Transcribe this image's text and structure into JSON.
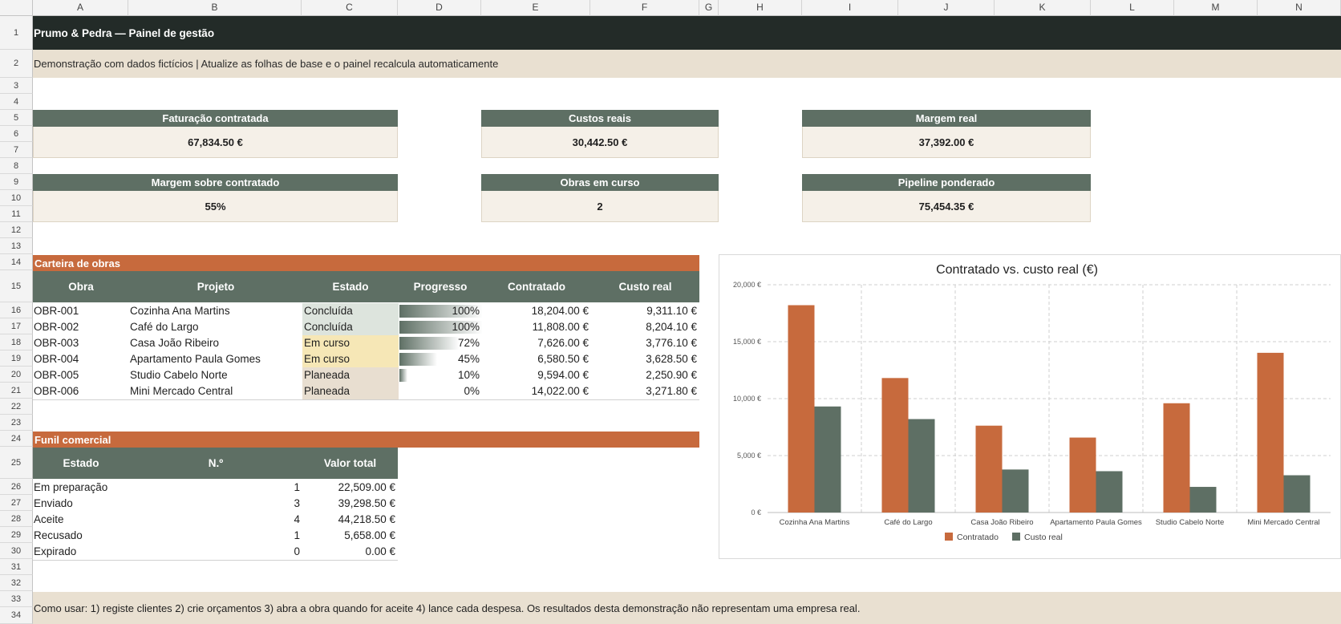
{
  "columns": [
    "A",
    "B",
    "C",
    "D",
    "E",
    "F",
    "G",
    "H",
    "I",
    "J",
    "K",
    "L",
    "M",
    "N"
  ],
  "rows": [
    "1",
    "2",
    "3",
    "4",
    "5",
    "6",
    "7",
    "8",
    "9",
    "10",
    "11",
    "12",
    "13",
    "14",
    "15",
    "16",
    "17",
    "18",
    "19",
    "20",
    "21",
    "22",
    "23",
    "24",
    "25",
    "26",
    "27",
    "28",
    "29",
    "30",
    "31",
    "32",
    "33",
    "34"
  ],
  "title": "Prumo & Pedra — Painel de gestão",
  "subtitle": "Demonstração com dados fictícios | Atualize as folhas de base e o painel recalcula automaticamente",
  "kpis": [
    {
      "label": "Faturação contratada",
      "value": "67,834.50 €"
    },
    {
      "label": "Custos reais",
      "value": "30,442.50 €"
    },
    {
      "label": "Margem real",
      "value": "37,392.00 €"
    },
    {
      "label": "Margem sobre contratado",
      "value": "55%"
    },
    {
      "label": "Obras em curso",
      "value": "2"
    },
    {
      "label": "Pipeline ponderado",
      "value": "75,454.35 €"
    }
  ],
  "portfolio": {
    "section": "Carteira de obras",
    "headers": [
      "Obra",
      "Projeto",
      "Estado",
      "Progresso",
      "Contratado",
      "Custo real"
    ],
    "rows": [
      {
        "id": "OBR-001",
        "project": "Cozinha Ana Martins",
        "status": "Concluída",
        "status_kind": "done",
        "progress": 1.0,
        "progress_label": "100%",
        "contracted": "18,204.00 €",
        "cost": "9,311.10 €"
      },
      {
        "id": "OBR-002",
        "project": "Café do Largo",
        "status": "Concluída",
        "status_kind": "done",
        "progress": 1.0,
        "progress_label": "100%",
        "contracted": "11,808.00 €",
        "cost": "8,204.10 €"
      },
      {
        "id": "OBR-003",
        "project": "Casa João Ribeiro",
        "status": "Em curso",
        "status_kind": "run",
        "progress": 0.72,
        "progress_label": "72%",
        "contracted": "7,626.00 €",
        "cost": "3,776.10 €"
      },
      {
        "id": "OBR-004",
        "project": "Apartamento Paula Gomes",
        "status": "Em curso",
        "status_kind": "run",
        "progress": 0.45,
        "progress_label": "45%",
        "contracted": "6,580.50 €",
        "cost": "3,628.50 €"
      },
      {
        "id": "OBR-005",
        "project": "Studio Cabelo Norte",
        "status": "Planeada",
        "status_kind": "plan",
        "progress": 0.1,
        "progress_label": "10%",
        "contracted": "9,594.00 €",
        "cost": "2,250.90 €"
      },
      {
        "id": "OBR-006",
        "project": "Mini Mercado Central",
        "status": "Planeada",
        "status_kind": "plan",
        "progress": 0.0,
        "progress_label": "0%",
        "contracted": "14,022.00 €",
        "cost": "3,271.80 €"
      }
    ]
  },
  "funnel": {
    "section": "Funil comercial",
    "headers": [
      "Estado",
      "N.º",
      "Valor total"
    ],
    "rows": [
      {
        "state": "Em preparação",
        "count": "1",
        "total": "22,509.00 €"
      },
      {
        "state": "Enviado",
        "count": "3",
        "total": "39,298.50 €"
      },
      {
        "state": "Aceite",
        "count": "4",
        "total": "44,218.50 €"
      },
      {
        "state": "Recusado",
        "count": "1",
        "total": "5,658.00 €"
      },
      {
        "state": "Expirado",
        "count": "0",
        "total": "0.00 €"
      }
    ]
  },
  "footer": "Como usar: 1) registe clientes  2) crie orçamentos  3) abra a obra quando for aceite  4) lance cada despesa. Os resultados desta demonstração não representam uma empresa real.",
  "colors": {
    "contracted": "#c76a3d",
    "cost": "#5e6f64",
    "header_dark": "#232b28"
  },
  "chart_data": {
    "type": "bar",
    "title": "Contratado vs. custo real (€)",
    "categories": [
      "Cozinha Ana Martins",
      "Café do Largo",
      "Casa João Ribeiro",
      "Apartamento Paula Gomes",
      "Studio Cabelo Norte",
      "Mini Mercado Central"
    ],
    "series": [
      {
        "name": "Contratado",
        "values": [
          18204,
          11808,
          7626,
          6580.5,
          9594,
          14022
        ]
      },
      {
        "name": "Custo real",
        "values": [
          9311.1,
          8204.1,
          3776.1,
          3628.5,
          2250.9,
          3271.8
        ]
      }
    ],
    "ylim": [
      0,
      20000
    ],
    "yticks": [
      "0 €",
      "5,000 €",
      "10,000 €",
      "15,000 €",
      "20,000 €"
    ],
    "grid": true,
    "legend": "bottom"
  }
}
